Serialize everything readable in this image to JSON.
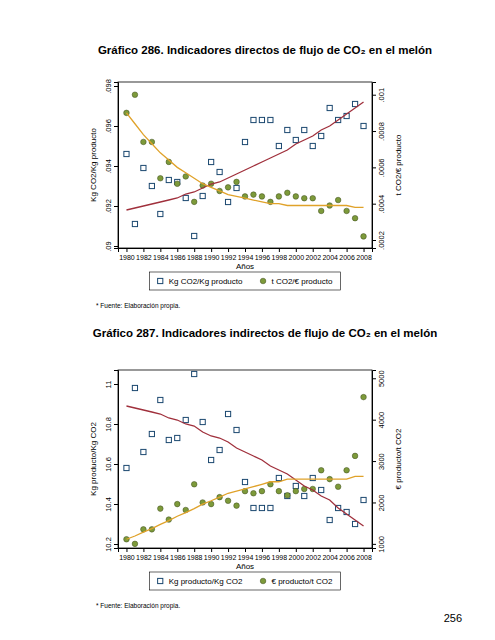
{
  "chart_data": [
    {
      "type": "scatter",
      "title": "Gráfico 286. Indicadores directos de flujo de CO₂ en el melón",
      "x_label": "Años",
      "y_label": "Kg CO2/Kg producto",
      "y2_label": "t CO2/€ producto",
      "note": "* Fuente: Elaboración propia.",
      "x": [
        1980,
        1981,
        1982,
        1983,
        1984,
        1985,
        1986,
        1987,
        1988,
        1989,
        1990,
        1991,
        1992,
        1993,
        1994,
        1995,
        1996,
        1997,
        1998,
        1999,
        2000,
        2001,
        2002,
        2003,
        2004,
        2005,
        2006,
        2007,
        2008
      ],
      "xlim": [
        1979,
        2009
      ],
      "xticks": [
        1980,
        1982,
        1984,
        1986,
        1988,
        1990,
        1992,
        1994,
        1996,
        1998,
        2000,
        2002,
        2004,
        2006,
        2008
      ],
      "ylim": [
        0.0899,
        0.0982
      ],
      "yticks": [
        {
          "value": 0.09,
          "label": ".09"
        },
        {
          "value": 0.092,
          "label": ".092"
        },
        {
          "value": 0.094,
          "label": ".094"
        },
        {
          "value": 0.096,
          "label": ".096"
        },
        {
          "value": 0.098,
          "label": ".098"
        }
      ],
      "y2lim": [
        0.000156,
        0.00107
      ],
      "y2ticks": [
        {
          "value": 0.0002,
          "label": ".0002"
        },
        {
          "value": 0.0004,
          "label": ".0004"
        },
        {
          "value": 0.0006,
          "label": ".0006"
        },
        {
          "value": 0.0008,
          "label": ".0008"
        },
        {
          "value": 0.001,
          "label": ".001"
        }
      ],
      "legend": "bottom",
      "series": [
        {
          "name": "Kg CO2/Kg producto",
          "type": "scatter",
          "marker": "square",
          "color": "#1a476f",
          "values": [
            0.0946,
            0.0911,
            0.0939,
            0.093,
            0.0916,
            0.0933,
            0.0932,
            0.0924,
            0.0905,
            0.0925,
            0.0942,
            0.0937,
            0.0922,
            0.0929,
            0.0952,
            0.0963,
            0.0963,
            0.0963,
            0.095,
            0.0958,
            0.0953,
            0.0958,
            0.095,
            0.0955,
            0.0969,
            0.0963,
            0.0965,
            0.0971,
            0.096
          ]
        },
        {
          "name": "t CO2/€ producto",
          "type": "scatter",
          "marker": "circle",
          "color": "#7d9a3a",
          "axis": "y2",
          "values": [
            0.0009,
            0.001,
            0.00074,
            0.00074,
            0.00054,
            0.00063,
            0.00051,
            0.00055,
            0.00041,
            0.0005,
            0.00051,
            0.00047,
            0.00049,
            0.00052,
            0.00044,
            0.00045,
            0.00044,
            0.00041,
            0.00044,
            0.00046,
            0.00044,
            0.00043,
            0.00043,
            0.00036,
            0.00039,
            0.00042,
            0.00036,
            0.00032,
            0.00022
          ]
        },
        {
          "type": "line",
          "color": "#a0303c",
          "values": [
            0.0918,
            0.0919,
            0.092,
            0.0921,
            0.0922,
            0.0923,
            0.0924,
            0.0926,
            0.0927,
            0.0929,
            0.0931,
            0.0932,
            0.0934,
            0.0936,
            0.0938,
            0.094,
            0.0942,
            0.0944,
            0.0946,
            0.0948,
            0.0951,
            0.0953,
            0.0955,
            0.0958,
            0.096,
            0.0963,
            0.0966,
            0.0969,
            0.0972
          ]
        },
        {
          "type": "line",
          "color": "#e0a22a",
          "axis": "y2",
          "values": [
            0.0009,
            0.00084,
            0.00078,
            0.00073,
            0.00068,
            0.00064,
            0.0006,
            0.00057,
            0.00054,
            0.00051,
            0.00049,
            0.00047,
            0.00045,
            0.00044,
            0.00043,
            0.00042,
            0.00041,
            0.0004,
            0.0004,
            0.00039,
            0.00039,
            0.00039,
            0.00039,
            0.00039,
            0.00039,
            0.00039,
            0.00039,
            0.00038,
            0.00038
          ]
        }
      ]
    },
    {
      "type": "scatter",
      "title": "Gráfico 287. Indicadores indirectos de flujo de CO₂ en el melón",
      "x_label": "Años",
      "y_label": "Kg producto/Kg CO2",
      "y2_label": "€ producto/t CO2",
      "note": "* Fuente: Elaboración propia.",
      "x": [
        1980,
        1981,
        1982,
        1983,
        1984,
        1985,
        1986,
        1987,
        1988,
        1989,
        1990,
        1991,
        1992,
        1993,
        1994,
        1995,
        1996,
        1997,
        1998,
        1999,
        2000,
        2001,
        2002,
        2003,
        2004,
        2005,
        2006,
        2007,
        2008
      ],
      "xlim": [
        1979,
        2009
      ],
      "xticks": [
        1980,
        1982,
        1984,
        1986,
        1988,
        1990,
        1992,
        1994,
        1996,
        1998,
        2000,
        2002,
        2004,
        2006,
        2008
      ],
      "ylim": [
        10.18,
        11.07
      ],
      "yticks": [
        10.2,
        10.4,
        10.6,
        10.8,
        11
      ],
      "y2lim": [
        900,
        5200
      ],
      "y2ticks": [
        1000,
        2000,
        3000,
        4000,
        5000
      ],
      "legend": "bottom",
      "series": [
        {
          "name": "Kg producto/Kg CO2",
          "type": "scatter",
          "marker": "square",
          "color": "#1a476f",
          "values": [
            10.58,
            10.98,
            10.66,
            10.75,
            10.92,
            10.72,
            10.73,
            10.82,
            11.05,
            10.81,
            10.62,
            10.67,
            10.85,
            10.77,
            10.51,
            10.38,
            10.38,
            10.38,
            10.53,
            10.44,
            10.49,
            10.44,
            10.53,
            10.47,
            10.32,
            10.38,
            10.36,
            10.3,
            10.42
          ]
        },
        {
          "name": "€ producto/t CO2",
          "type": "scatter",
          "marker": "circle",
          "color": "#7d9a3a",
          "axis": "y2",
          "values": [
            1111,
            1000,
            1351,
            1351,
            1852,
            1587,
            1961,
            1818,
            2439,
            2000,
            1961,
            2128,
            2041,
            1923,
            2273,
            2222,
            2273,
            2439,
            2273,
            2174,
            2273,
            2326,
            2326,
            2778,
            2564,
            2381,
            2778,
            3125,
            4545
          ]
        },
        {
          "type": "line",
          "color": "#a0303c",
          "values": [
            10.89,
            10.88,
            10.87,
            10.86,
            10.85,
            10.83,
            10.82,
            10.8,
            10.79,
            10.76,
            10.74,
            10.73,
            10.71,
            10.68,
            10.66,
            10.64,
            10.62,
            10.59,
            10.57,
            10.55,
            10.52,
            10.49,
            10.47,
            10.44,
            10.42,
            10.38,
            10.35,
            10.32,
            10.29
          ]
        },
        {
          "type": "line",
          "color": "#e0a22a",
          "axis": "y2",
          "values": [
            1111,
            1190,
            1282,
            1370,
            1471,
            1563,
            1667,
            1754,
            1852,
            1961,
            2041,
            2128,
            2222,
            2273,
            2326,
            2381,
            2439,
            2500,
            2500,
            2564,
            2564,
            2564,
            2564,
            2564,
            2564,
            2564,
            2564,
            2632,
            2632
          ]
        }
      ]
    }
  ],
  "page_number": "256"
}
